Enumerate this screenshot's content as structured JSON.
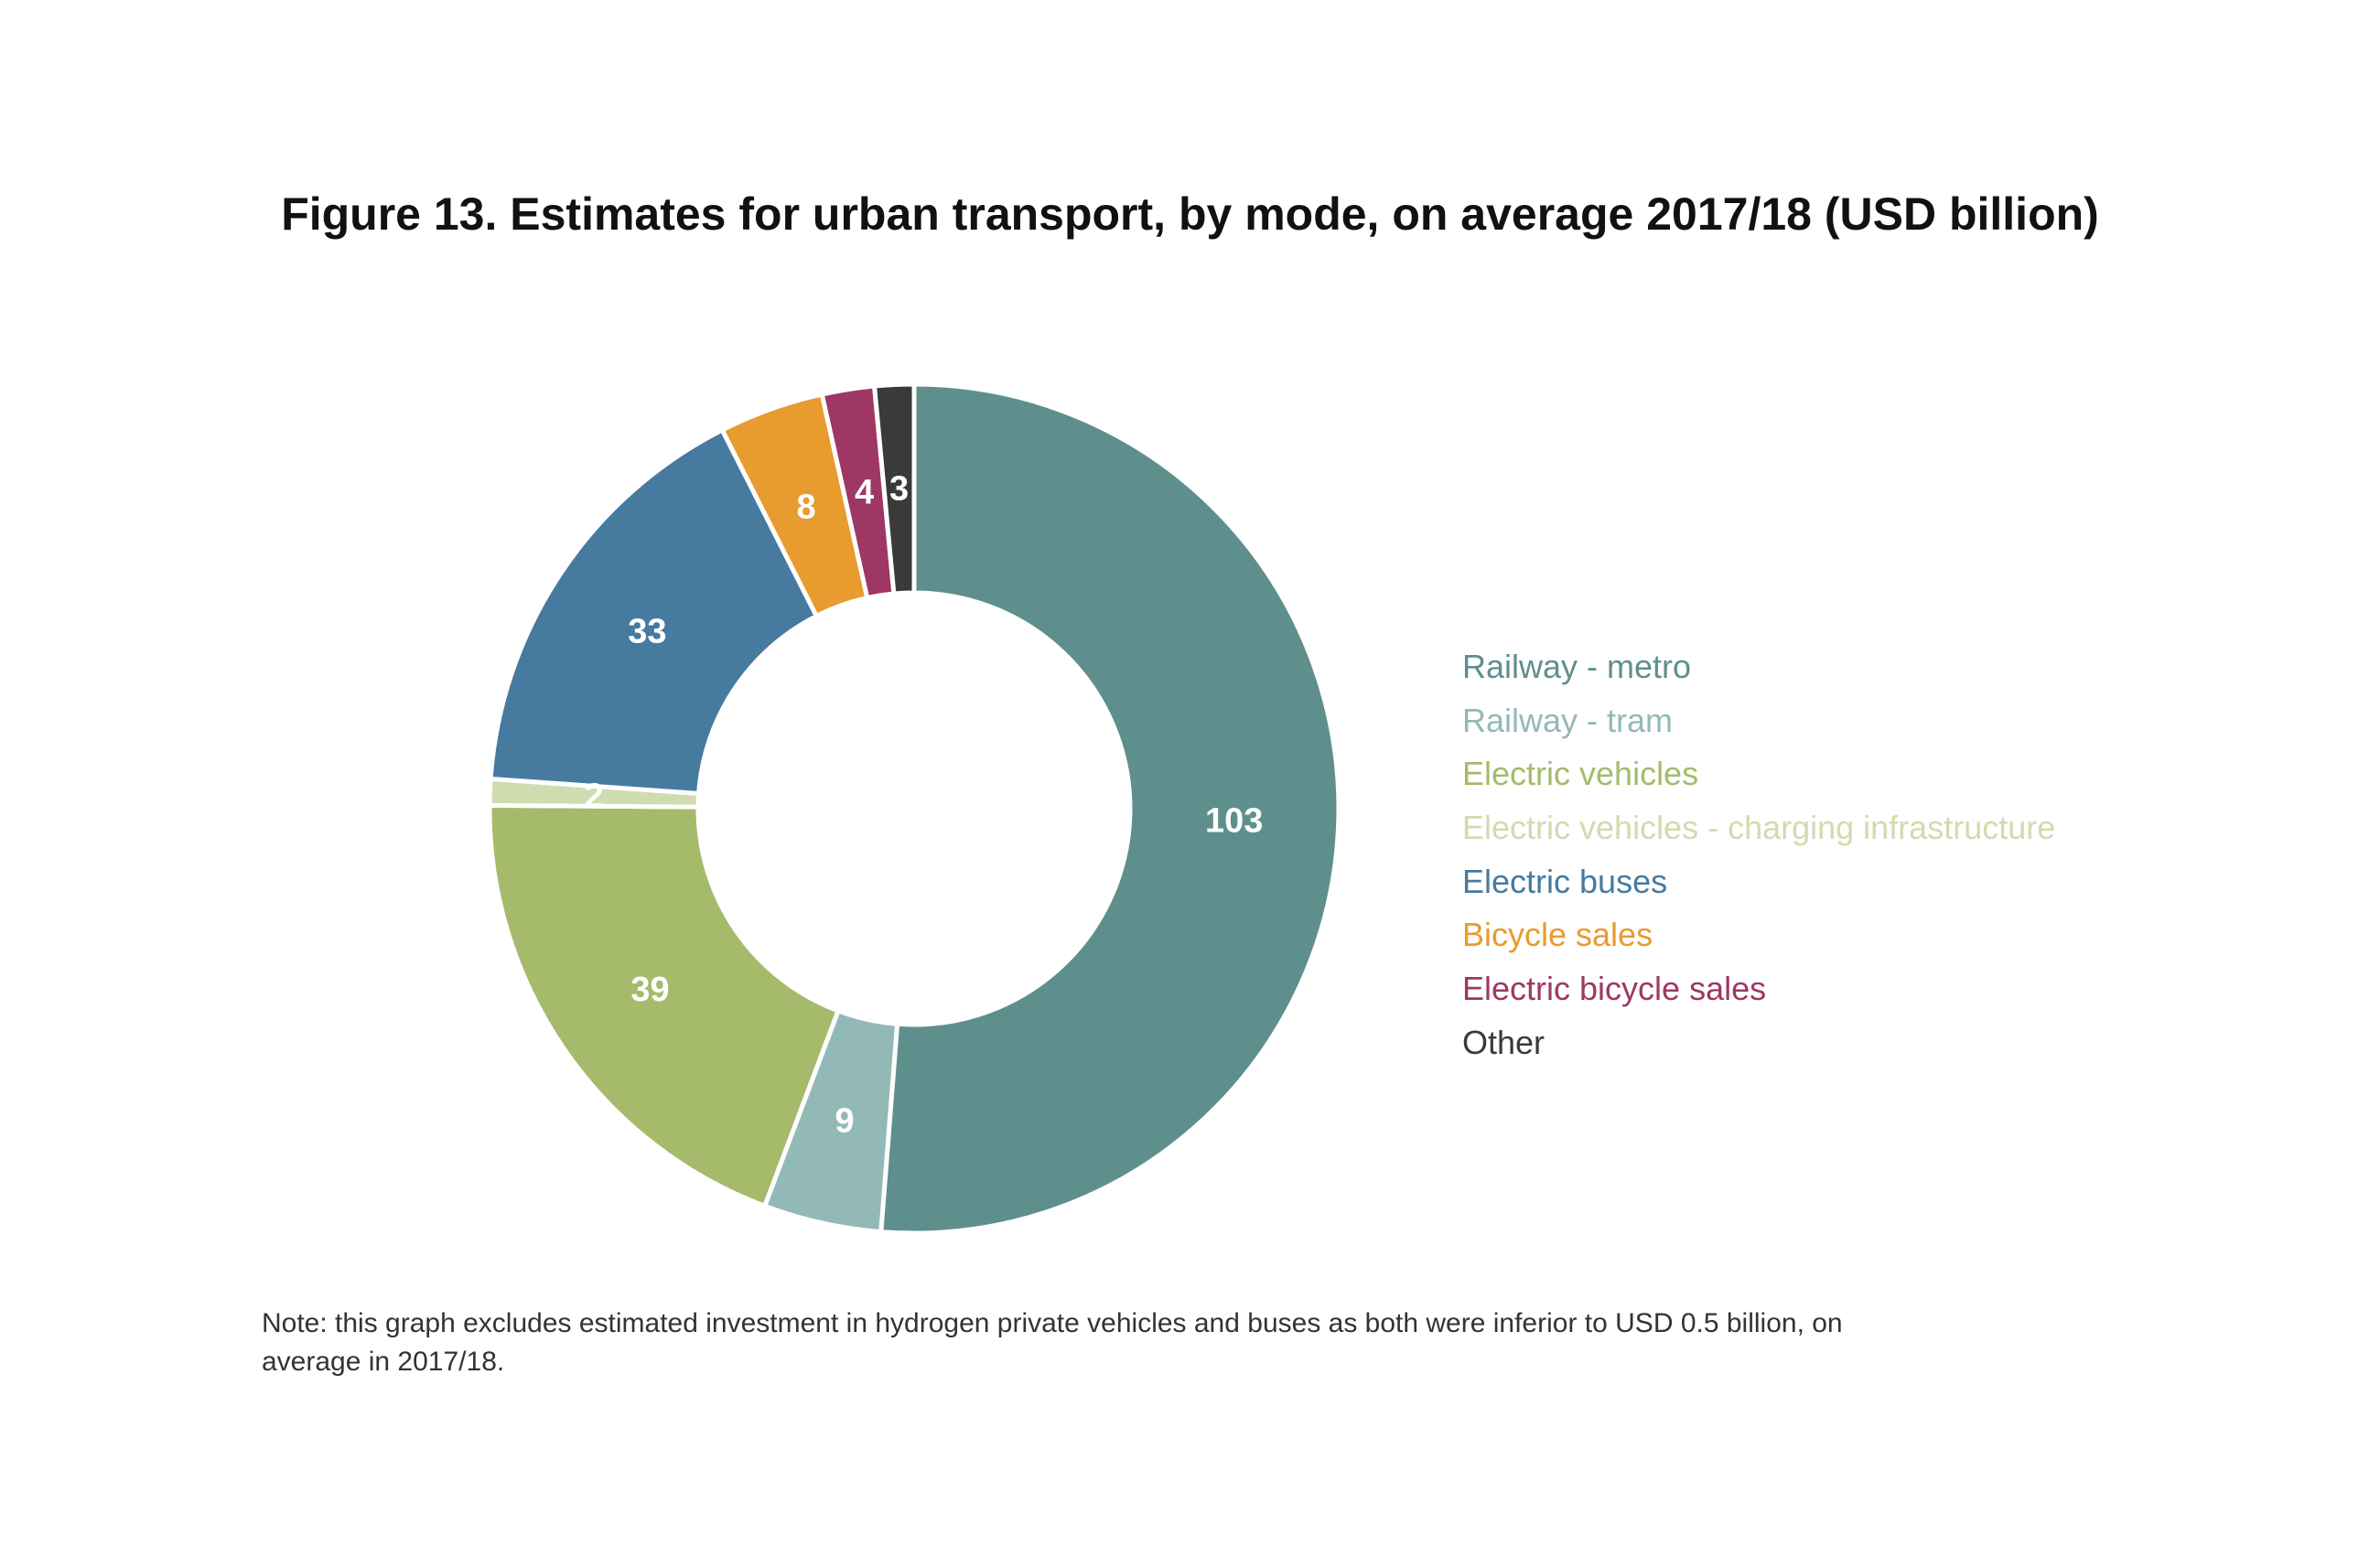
{
  "chart_data": {
    "type": "pie",
    "variant": "donut",
    "title": "Figure 13. Estimates for urban transport, by mode, on average 2017/18 (USD billion)",
    "unit": "USD billion",
    "legend_position": "right",
    "slices": [
      {
        "label": "Railway - metro",
        "value": 103,
        "color": "#5f8f8c",
        "legend_color": "#5f8f8c"
      },
      {
        "label": "Railway - tram",
        "value": 9,
        "color": "#93b9b7",
        "legend_color": "#93b9b7"
      },
      {
        "label": "Electric vehicles",
        "value": 39,
        "color": "#a6ba6c",
        "legend_color": "#a6ba6c"
      },
      {
        "label": "Electric vehicles - charging infrastructure",
        "value": 2,
        "color": "#cfdcb0",
        "legend_color": "#cfdcb0"
      },
      {
        "label": "Electric buses",
        "value": 33,
        "color": "#467a9f",
        "legend_color": "#467a9f"
      },
      {
        "label": "Bicycle sales",
        "value": 8,
        "color": "#e89b2e",
        "legend_color": "#e89b2e"
      },
      {
        "label": "Electric bicycle sales",
        "value": 4,
        "color": "#9e3764",
        "legend_color": "#9e3764"
      },
      {
        "label": "Other",
        "value": 3,
        "color": "#3a3a3a",
        "legend_color": "#3a3a3a"
      }
    ]
  },
  "note": "Note: this graph excludes estimated investment in hydrogen private vehicles and buses as both were inferior to USD 0.5 billion, on average in 2017/18."
}
